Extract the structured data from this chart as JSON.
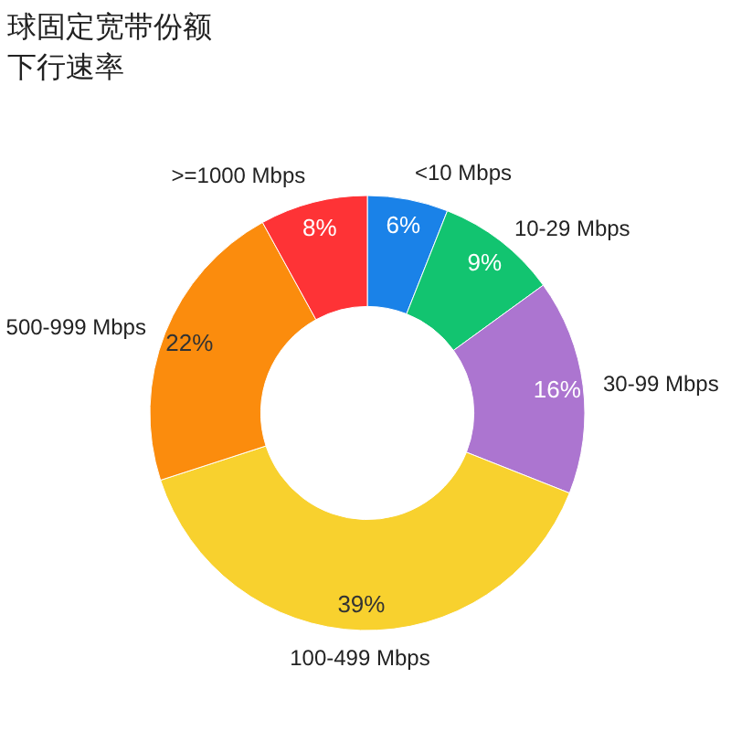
{
  "chart_data": {
    "type": "donut",
    "title": "球固定宽带份额",
    "subtitle": "下行速率",
    "categories": [
      "<10 Mbps",
      "10-29 Mbps",
      "30-99 Mbps",
      "100-499 Mbps",
      "500-999 Mbps",
      ">=1000 Mbps"
    ],
    "values": [
      6,
      9,
      16,
      39,
      22,
      8
    ],
    "colors": [
      "#1a82e8",
      "#12c470",
      "#ac75d0",
      "#f8d12e",
      "#fb8c0d",
      "#fe3336"
    ],
    "value_labels": [
      "6%",
      "9%",
      "16%",
      "39%",
      "22%",
      "8%"
    ]
  }
}
